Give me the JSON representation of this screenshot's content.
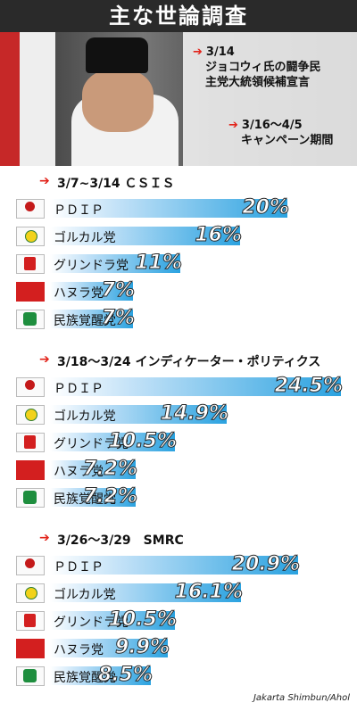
{
  "title": "主な世論調査",
  "annotations": [
    {
      "date": "3/14",
      "text1": "ジョコウィ氏の闘争民",
      "text2": "主党大統領候補宣言"
    },
    {
      "date": "3/16〜4/5",
      "text1": "キャンペーン期間",
      "text2": ""
    }
  ],
  "credit": "Jakarta Shimbun/Ahol",
  "colors": {
    "bar_end": "#2aa2e0",
    "bar_start": "#ffffff",
    "arrow": "#e2231a",
    "title_bg": "#2a2a2a"
  },
  "chart_data": [
    {
      "type": "bar",
      "title": "3/7~3/14 ＣＳＩＳ",
      "categories": [
        "ＰＤＩＰ",
        "ゴルカル党",
        "グリンドラ党",
        "ハヌラ党",
        "民族覚醒党"
      ],
      "values": [
        20,
        16,
        11,
        7,
        7
      ],
      "labels": [
        "20%",
        "16%",
        "11%",
        "7%",
        "7%"
      ]
    },
    {
      "type": "bar",
      "title": "3/18〜3/24 インディケーター・ポリティクス",
      "categories": [
        "ＰＤＩＰ",
        "ゴルカル党",
        "グリンドラ党",
        "ハヌラ党",
        "民族覚醒党"
      ],
      "values": [
        24.5,
        14.9,
        10.5,
        7.2,
        7.2
      ],
      "labels": [
        "24.5%",
        "14.9%",
        "10.5%",
        "7.2%",
        "7.2%"
      ]
    },
    {
      "type": "bar",
      "title": "3/26〜3/29　SMRC",
      "categories": [
        "ＰＤＩＰ",
        "ゴルカル党",
        "グリンドラ党",
        "ハヌラ党",
        "民族覚醒党"
      ],
      "values": [
        20.9,
        16.1,
        10.5,
        9.9,
        8.5
      ],
      "labels": [
        "20.9%",
        "16.1%",
        "10.5%",
        "9.9%",
        "8.5%"
      ]
    }
  ],
  "logos": [
    "pdip-logo",
    "golkar-logo",
    "gerindra-logo",
    "hanura-logo",
    "pkb-logo"
  ]
}
